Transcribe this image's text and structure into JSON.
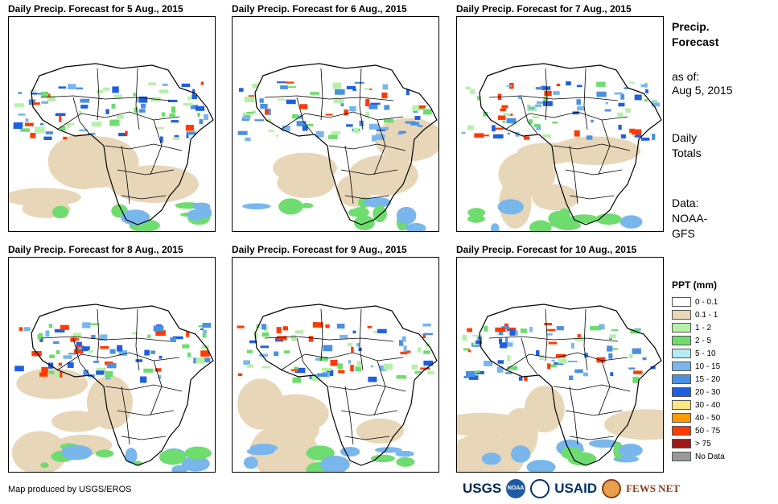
{
  "panels": [
    {
      "title": "Daily Precip. Forecast for 5 Aug., 2015"
    },
    {
      "title": "Daily Precip. Forecast for 6 Aug., 2015"
    },
    {
      "title": "Daily Precip. Forecast for 7 Aug., 2015"
    },
    {
      "title": "Daily Precip. Forecast for 8 Aug., 2015"
    },
    {
      "title": "Daily Precip. Forecast for 9 Aug., 2015"
    },
    {
      "title": "Daily Precip. Forecast for 10 Aug., 2015"
    }
  ],
  "side": {
    "heading_line1": "Precip.",
    "heading_line2": "Forecast",
    "asof_line1": "as of:",
    "asof_line2": "Aug 5, 2015",
    "totals_line1": "Daily",
    "totals_line2": "Totals",
    "data_line1": "Data:",
    "data_line2": "NOAA-",
    "data_line3": "GFS"
  },
  "legend": {
    "title": "PPT (mm)",
    "items": [
      {
        "label": "0 - 0.1",
        "color": "#ffffff"
      },
      {
        "label": "0.1 - 1",
        "color": "#e8d6b8"
      },
      {
        "label": "1 - 2",
        "color": "#b6f0a8"
      },
      {
        "label": "2 - 5",
        "color": "#6fdc6f"
      },
      {
        "label": "5 - 10",
        "color": "#b4ecf4"
      },
      {
        "label": "10 - 15",
        "color": "#78b6ec"
      },
      {
        "label": "15 - 20",
        "color": "#4a90e2"
      },
      {
        "label": "20 - 30",
        "color": "#1f5ee0"
      },
      {
        "label": "30 - 40",
        "color": "#ffe680"
      },
      {
        "label": "40 - 50",
        "color": "#ff9a00"
      },
      {
        "label": "50 - 75",
        "color": "#ff3a00"
      },
      {
        "label": "> 75",
        "color": "#a01818"
      },
      {
        "label": "No Data",
        "color": "#999999"
      }
    ]
  },
  "credit": "Map produced by USGS/EROS",
  "logos": {
    "usgs": "USGS",
    "noaa": "NOAA",
    "usaid": "USAID",
    "fews": "FEWS NET"
  }
}
